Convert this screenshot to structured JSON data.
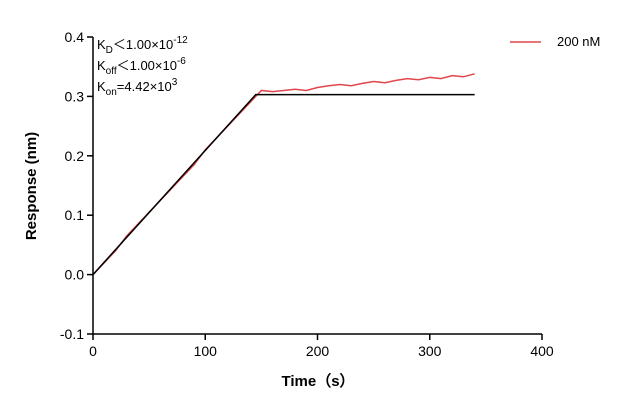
{
  "chart_data": {
    "type": "line",
    "xlabel": "Time（s）",
    "ylabel": "Response (nm)",
    "xlim": [
      0,
      400
    ],
    "ylim": [
      -0.1,
      0.4
    ],
    "xticks": [
      0,
      100,
      200,
      300,
      400
    ],
    "yticks": [
      -0.1,
      {
        "value": 0,
        "label": "0.0"
      },
      0.1,
      0.2,
      0.3,
      0.4
    ],
    "x": [
      0,
      10,
      20,
      30,
      40,
      50,
      60,
      70,
      80,
      90,
      100,
      110,
      120,
      130,
      140,
      145,
      150,
      160,
      170,
      180,
      190,
      200,
      210,
      220,
      230,
      240,
      250,
      260,
      270,
      280,
      290,
      300,
      310,
      320,
      330,
      340
    ],
    "series": [
      {
        "name": "200 nM",
        "color": "#e0474c",
        "values": [
          0.0,
          0.02,
          0.04,
          0.065,
          0.085,
          0.105,
          0.125,
          0.145,
          0.165,
          0.185,
          0.21,
          0.23,
          0.25,
          0.27,
          0.29,
          0.3,
          0.31,
          0.308,
          0.31,
          0.312,
          0.31,
          0.315,
          0.318,
          0.32,
          0.318,
          0.322,
          0.325,
          0.323,
          0.327,
          0.33,
          0.328,
          0.332,
          0.33,
          0.335,
          0.333,
          0.338
        ]
      }
    ],
    "fit": {
      "color": "#000000",
      "x": [
        0,
        145,
        340
      ],
      "values": [
        0,
        0.303,
        0.303
      ]
    },
    "annotations": [
      {
        "base": "K",
        "sub": "D",
        "text": "＜1.00×10",
        "sup": "-12"
      },
      {
        "base": "K",
        "sub": "off",
        "text": "＜1.00×10",
        "sup": "-6"
      },
      {
        "base": "K",
        "sub": "on",
        "text": "=4.42×10",
        "sup": "3"
      }
    ]
  }
}
